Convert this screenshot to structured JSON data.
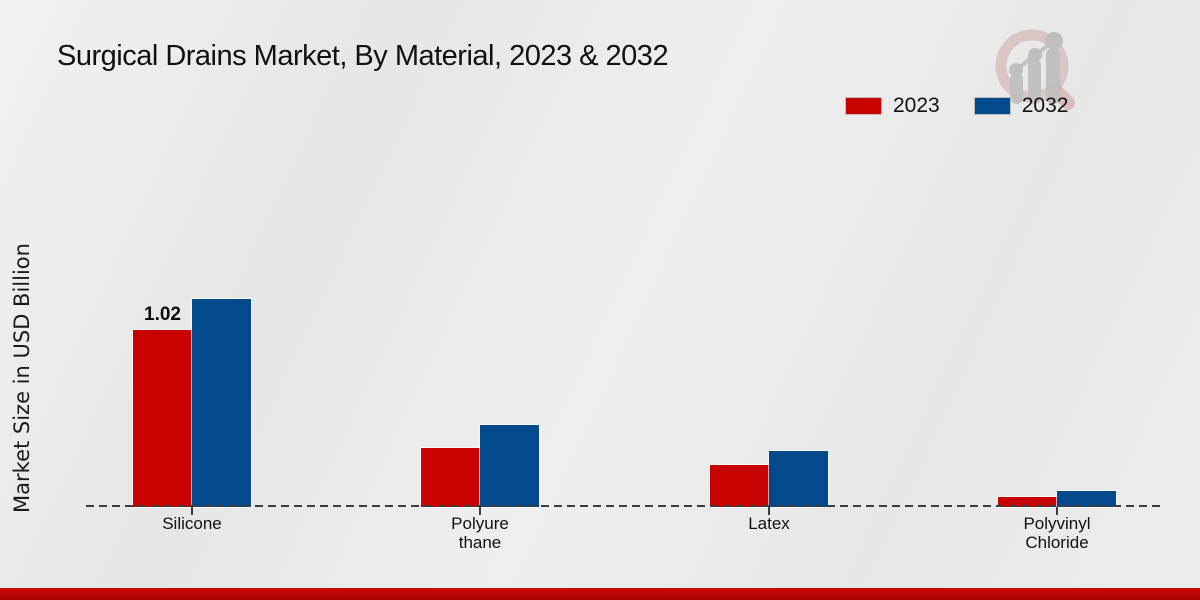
{
  "title": "Surgical Drains Market, By Material, 2023 & 2032",
  "ylabel": "Market Size in USD Billion",
  "legend": {
    "items": [
      {
        "label": "2023",
        "color": "#c80101"
      },
      {
        "label": "2032",
        "color": "#034a8c"
      }
    ]
  },
  "logo": {
    "name": "market-research-magnifier-logo"
  },
  "footer": {
    "accent_color": "#c00606"
  },
  "chart_data": {
    "type": "bar",
    "title": "Surgical Drains Market, By Material, 2023 & 2032",
    "xlabel": "",
    "ylabel": "Market Size in USD Billion",
    "categories": [
      "Silicone",
      "Polyure\nthane",
      "Latex",
      "Polyvinyl\nChloride"
    ],
    "series": [
      {
        "name": "2023",
        "color": "#c80101",
        "values": [
          1.02,
          0.34,
          0.24,
          0.06
        ],
        "value_labels": [
          "1.02",
          "",
          "",
          ""
        ]
      },
      {
        "name": "2032",
        "color": "#034a8c",
        "values": [
          1.2,
          0.47,
          0.32,
          0.09
        ],
        "value_labels": [
          "",
          "",
          "",
          ""
        ]
      }
    ],
    "ylim": [
      0,
      2.2
    ],
    "grid": false,
    "legend_position": "top-right",
    "baseline_style": "dashed",
    "annotated_values": [
      {
        "category": "Silicone",
        "series": "2023",
        "text": "1.02"
      }
    ]
  }
}
